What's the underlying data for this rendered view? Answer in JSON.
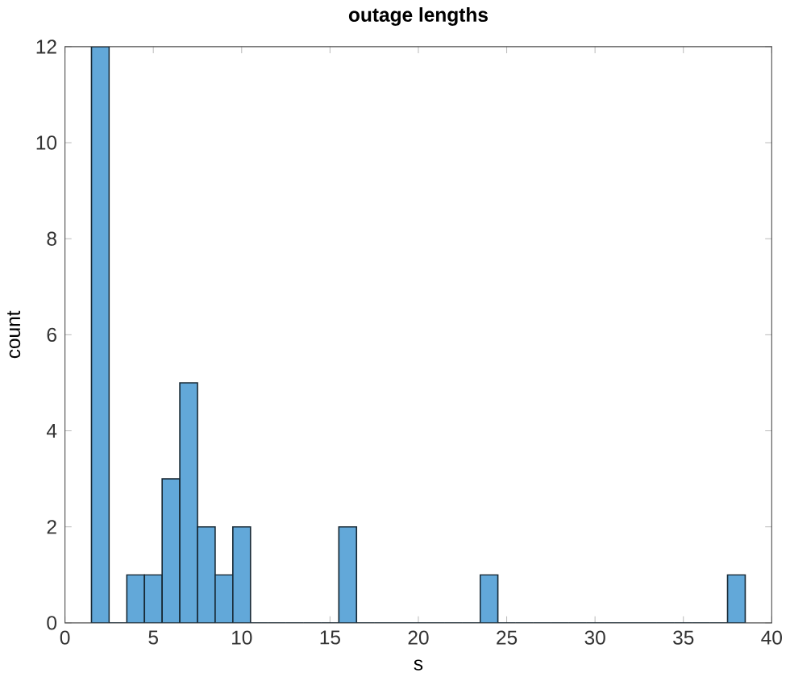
{
  "chart_data": {
    "type": "histogram",
    "title": "outage lengths",
    "xlabel": "s",
    "ylabel": "count",
    "bins": [
      1.5,
      2.5,
      3.5,
      4.5,
      5.5,
      6.5,
      7.5,
      8.5,
      9.5,
      10.5,
      11.5,
      12.5,
      13.5,
      14.5,
      15.5,
      16.5,
      17.5,
      18.5,
      19.5,
      20.5,
      21.5,
      22.5,
      23.5,
      24.5,
      25.5,
      26.5,
      27.5,
      28.5,
      29.5,
      30.5,
      31.5,
      32.5,
      33.5,
      34.5,
      35.5,
      36.5,
      37.5,
      38.5
    ],
    "values": [
      12,
      0,
      1,
      1,
      3,
      5,
      2,
      1,
      2,
      0,
      0,
      0,
      0,
      0,
      2,
      0,
      0,
      0,
      0,
      0,
      0,
      0,
      1,
      0,
      0,
      0,
      0,
      0,
      0,
      0,
      0,
      0,
      0,
      0,
      0,
      0,
      1
    ],
    "color": "#62a8d9",
    "xlim": [
      0,
      40
    ],
    "xticks": [
      0,
      5,
      10,
      15,
      20,
      25,
      30,
      35,
      40
    ],
    "ylim": [
      0,
      12
    ],
    "yticks": [
      0,
      2,
      4,
      6,
      8,
      10,
      12
    ]
  }
}
